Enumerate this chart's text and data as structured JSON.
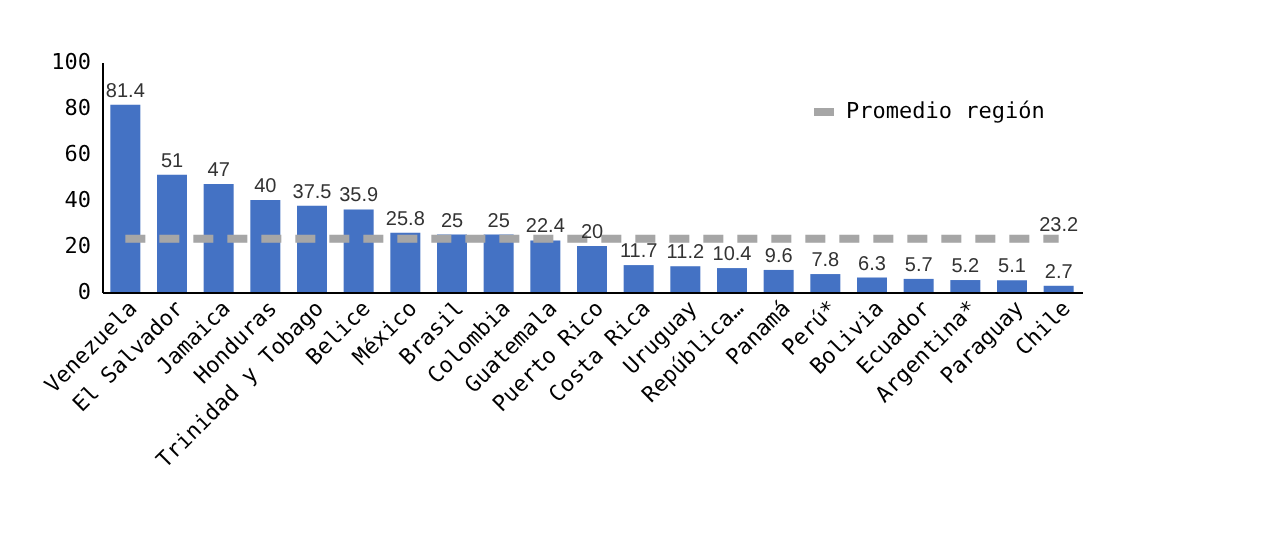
{
  "chart_data": {
    "type": "bar",
    "categories": [
      "Venezuela",
      "El Salvador",
      "Jamaica",
      "Honduras",
      "Trinidad y Tobago",
      "Belice",
      "México",
      "Brasil",
      "Colombia",
      "Guatemala",
      "Puerto Rico",
      "Costa Rica",
      "Uruguay",
      "República…",
      "Panamá",
      "Perú*",
      "Bolivia",
      "Ecuador",
      "Argentina*",
      "Paraguay",
      "Chile"
    ],
    "series": [
      {
        "color": "#4472c4",
        "values": [
          81.4,
          51,
          47,
          40,
          37.5,
          35.9,
          25.8,
          25,
          25,
          22.4,
          20,
          11.7,
          11.2,
          10.4,
          9.6,
          7.8,
          6.3,
          5.7,
          5.2,
          5.1,
          2.7
        ],
        "value_labels": [
          "81.4",
          "51",
          "47",
          "40",
          "37.5",
          "35.9",
          "25.8",
          "25",
          "25",
          "22.4",
          "20",
          "11.7",
          "11.2",
          "10.4",
          "9.6",
          "7.8",
          "6.3",
          "5.7",
          "5.2",
          "5.1",
          "2.7"
        ]
      },
      {
        "type": "line",
        "name": "Promedio región",
        "color": "#a6a6a6",
        "line_style": "dashed",
        "values": [
          23.2,
          23.2,
          23.2,
          23.2,
          23.2,
          23.2,
          23.2,
          23.2,
          23.2,
          23.2,
          23.2,
          23.2,
          23.2,
          23.2,
          23.2,
          23.2,
          23.2,
          23.2,
          23.2,
          23.2,
          23.2
        ],
        "value_labels": [
          null,
          null,
          null,
          null,
          null,
          null,
          null,
          null,
          null,
          null,
          null,
          null,
          null,
          null,
          null,
          null,
          null,
          null,
          null,
          null,
          "23.2"
        ]
      }
    ],
    "ylim": [
      0,
      100
    ],
    "yticks": [
      0,
      20,
      40,
      60,
      80,
      100
    ],
    "grid": false,
    "legend": "top right"
  }
}
